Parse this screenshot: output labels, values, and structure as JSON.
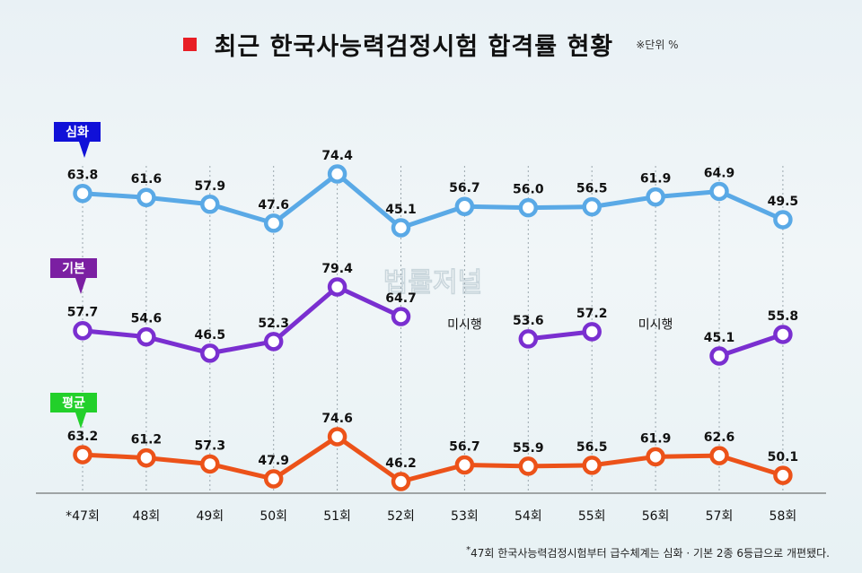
{
  "title": "최근 한국사능력검정시험 합격률 현황",
  "unit_note": "※단위 %",
  "footnote": "47회 한국사능력검정시험부터 급수체계는 심화 · 기본 2종 6등급으로 개편됐다.",
  "footnote_mark": "*",
  "watermark": "법률저널",
  "colors": {
    "title_mark": "#e81e25",
    "심화": "#5aa9e6",
    "기본": "#7a2fd0",
    "평균": "#ec5219"
  },
  "chart_data": {
    "type": "line",
    "categories": [
      "*47회",
      "48회",
      "49회",
      "50회",
      "51회",
      "52회",
      "53회",
      "54회",
      "55회",
      "56회",
      "57회",
      "58회"
    ],
    "series": [
      {
        "name": "심화",
        "label_bg": "#1010d8",
        "values": [
          63.8,
          61.6,
          57.9,
          47.6,
          74.4,
          45.1,
          56.7,
          56.0,
          56.5,
          61.9,
          64.9,
          49.5
        ]
      },
      {
        "name": "기본",
        "label_bg": "#7b1fa2",
        "values": [
          57.7,
          54.6,
          46.5,
          52.3,
          79.4,
          64.7,
          null,
          53.6,
          57.2,
          null,
          45.1,
          55.8
        ]
      },
      {
        "name": "평균",
        "label_bg": "#22d02a",
        "values": [
          63.2,
          61.2,
          57.3,
          47.9,
          74.6,
          46.2,
          56.7,
          55.9,
          56.5,
          61.9,
          62.6,
          50.1
        ]
      }
    ],
    "missing_label": "미시행",
    "grid": "vertical dashed",
    "legend": "left-of-each-series"
  }
}
